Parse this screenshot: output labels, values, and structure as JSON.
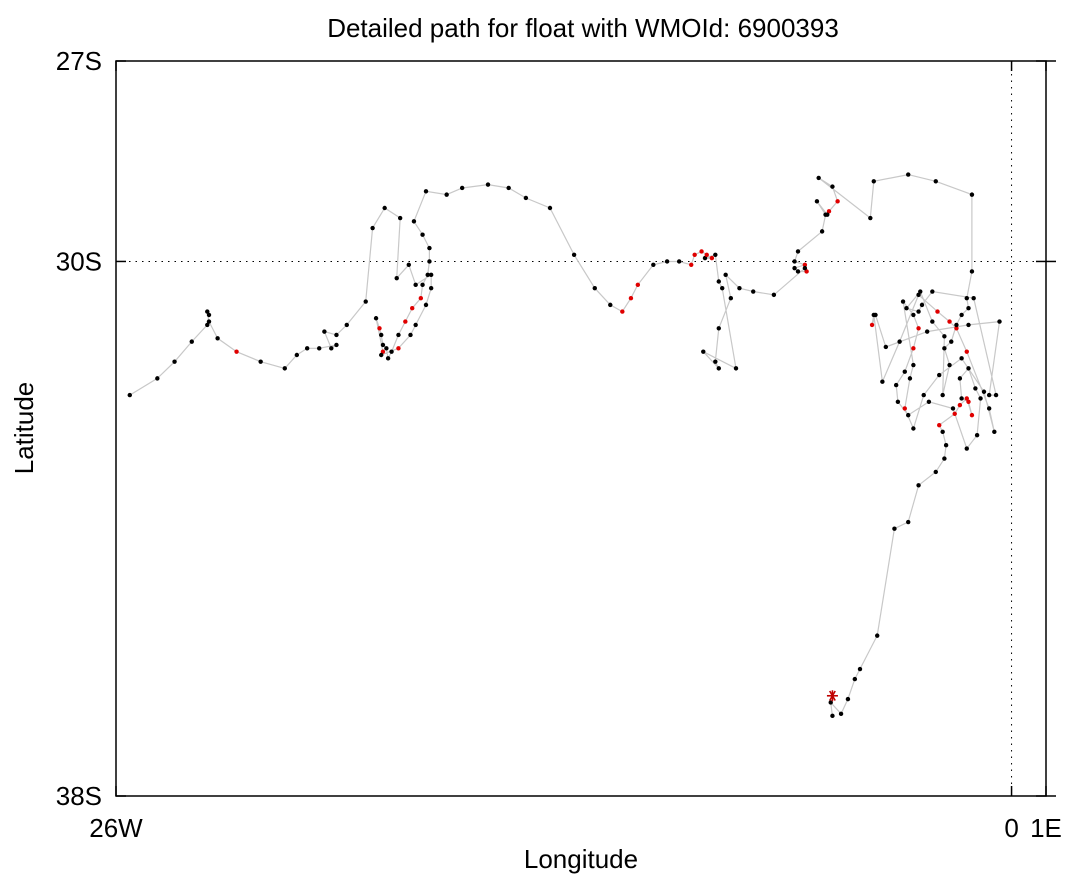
{
  "chart_data": {
    "type": "scatter",
    "title": "Detailed path for float with WMOId: 6900393",
    "xlabel": "Longitude",
    "ylabel": "Latitude",
    "xlim": [
      -26,
      1
    ],
    "ylim": [
      -38,
      -27
    ],
    "x_ticks": [
      {
        "value": -26,
        "label": "26W"
      },
      {
        "value": 0,
        "label": "0"
      },
      {
        "value": 1,
        "label": "1E"
      }
    ],
    "y_ticks": [
      {
        "value": -27,
        "label": "27S"
      },
      {
        "value": -30,
        "label": "30S"
      },
      {
        "value": -38,
        "label": "38S"
      }
    ],
    "reference_lines": {
      "longitude": 0,
      "latitude": -30,
      "style": "dotted"
    },
    "grid": false,
    "colors": {
      "path": "#c8c8c8",
      "position": "#000000",
      "highlight": "#e00000",
      "start_marker": "#c00000"
    },
    "start_marker": {
      "x": -5.2,
      "y": -36.5,
      "symbol": "asterisk"
    },
    "path": [
      {
        "x": -5.2,
        "y": -36.8,
        "h": false
      },
      {
        "x": -5.25,
        "y": -36.6,
        "h": false
      },
      {
        "x": -4.95,
        "y": -36.77,
        "h": false
      },
      {
        "x": -4.75,
        "y": -36.55,
        "h": false
      },
      {
        "x": -4.55,
        "y": -36.25,
        "h": false
      },
      {
        "x": -4.4,
        "y": -36.1,
        "h": false
      },
      {
        "x": -3.9,
        "y": -35.6,
        "h": false
      },
      {
        "x": -3.4,
        "y": -34.0,
        "h": false
      },
      {
        "x": -3.0,
        "y": -33.9,
        "h": false
      },
      {
        "x": -2.7,
        "y": -33.35,
        "h": false
      },
      {
        "x": -2.2,
        "y": -33.15,
        "h": false
      },
      {
        "x": -1.95,
        "y": -32.95,
        "h": false
      },
      {
        "x": -1.9,
        "y": -32.75,
        "h": false
      },
      {
        "x": -2.0,
        "y": -32.55,
        "h": false
      },
      {
        "x": -2.1,
        "y": -32.45,
        "h": true
      },
      {
        "x": -1.65,
        "y": -32.28,
        "h": true
      },
      {
        "x": -1.5,
        "y": -32.15,
        "h": true
      },
      {
        "x": -1.3,
        "y": -32.05,
        "h": true
      },
      {
        "x": -1.15,
        "y": -32.3,
        "h": true
      },
      {
        "x": -1.25,
        "y": -32.1,
        "h": true
      },
      {
        "x": -1.45,
        "y": -32.05,
        "h": false
      },
      {
        "x": -1.5,
        "y": -31.75,
        "h": false
      },
      {
        "x": -1.25,
        "y": -31.6,
        "h": false
      },
      {
        "x": -1.05,
        "y": -31.9,
        "h": false
      },
      {
        "x": -0.9,
        "y": -32.05,
        "h": false
      },
      {
        "x": -1.0,
        "y": -32.6,
        "h": false
      },
      {
        "x": -1.3,
        "y": -32.8,
        "h": false
      },
      {
        "x": -1.7,
        "y": -32.2,
        "h": false
      },
      {
        "x": -2.4,
        "y": -32.1,
        "h": false
      },
      {
        "x": -3.0,
        "y": -32.3,
        "h": false
      },
      {
        "x": -3.3,
        "y": -32.1,
        "h": false
      },
      {
        "x": -3.35,
        "y": -31.85,
        "h": false
      },
      {
        "x": -3.1,
        "y": -31.65,
        "h": false
      },
      {
        "x": -2.85,
        "y": -31.3,
        "h": true
      },
      {
        "x": -2.7,
        "y": -31.0,
        "h": true
      },
      {
        "x": -2.85,
        "y": -30.8,
        "h": false
      },
      {
        "x": -3.15,
        "y": -30.6,
        "h": false
      },
      {
        "x": -2.85,
        "y": -31.55,
        "h": false
      },
      {
        "x": -2.95,
        "y": -31.75,
        "h": false
      },
      {
        "x": -3.1,
        "y": -32.2,
        "h": true
      },
      {
        "x": -2.85,
        "y": -32.5,
        "h": false
      },
      {
        "x": -2.55,
        "y": -32.0,
        "h": false
      },
      {
        "x": -2.1,
        "y": -31.7,
        "h": false
      },
      {
        "x": -1.45,
        "y": -31.45,
        "h": false
      },
      {
        "x": -0.8,
        "y": -31.95,
        "h": false
      },
      {
        "x": -0.5,
        "y": -32.55,
        "h": false
      },
      {
        "x": -0.65,
        "y": -32.2,
        "h": false
      },
      {
        "x": -1.3,
        "y": -31.35,
        "h": true
      },
      {
        "x": -1.6,
        "y": -31.0,
        "h": true
      },
      {
        "x": -1.8,
        "y": -30.9,
        "h": true
      },
      {
        "x": -2.15,
        "y": -30.75,
        "h": true
      },
      {
        "x": -2.7,
        "y": -30.5,
        "h": false
      },
      {
        "x": -3.25,
        "y": -31.2,
        "h": false
      },
      {
        "x": -3.75,
        "y": -31.8,
        "h": false
      },
      {
        "x": -4.0,
        "y": -30.8,
        "h": false
      },
      {
        "x": -4.05,
        "y": -30.95,
        "h": true
      },
      {
        "x": -3.95,
        "y": -30.8,
        "h": false
      },
      {
        "x": -3.65,
        "y": -31.28,
        "h": false
      },
      {
        "x": -2.45,
        "y": -31.05,
        "h": false
      },
      {
        "x": -1.25,
        "y": -30.95,
        "h": false
      },
      {
        "x": -0.35,
        "y": -30.9,
        "h": false
      },
      {
        "x": -0.65,
        "y": -32.0,
        "h": false
      },
      {
        "x": -0.45,
        "y": -32.0,
        "h": false
      },
      {
        "x": -1.1,
        "y": -30.55,
        "h": false
      },
      {
        "x": -2.3,
        "y": -30.45,
        "h": false
      },
      {
        "x": -2.6,
        "y": -30.65,
        "h": false
      },
      {
        "x": -2.7,
        "y": -30.75,
        "h": false
      },
      {
        "x": -3.05,
        "y": -30.7,
        "h": false
      },
      {
        "x": -2.65,
        "y": -30.45,
        "h": false
      },
      {
        "x": -2.3,
        "y": -30.9,
        "h": false
      },
      {
        "x": -1.95,
        "y": -31.12,
        "h": false
      },
      {
        "x": -2.0,
        "y": -32.0,
        "h": false
      },
      {
        "x": -1.8,
        "y": -31.55,
        "h": false
      },
      {
        "x": -1.95,
        "y": -31.3,
        "h": false
      },
      {
        "x": -1.75,
        "y": -31.2,
        "h": false
      },
      {
        "x": -1.6,
        "y": -30.95,
        "h": false
      },
      {
        "x": -1.45,
        "y": -30.8,
        "h": false
      },
      {
        "x": -1.25,
        "y": -30.7,
        "h": false
      },
      {
        "x": -1.3,
        "y": -30.55,
        "h": false
      },
      {
        "x": -1.15,
        "y": -30.15,
        "h": false
      },
      {
        "x": -1.15,
        "y": -29.0,
        "h": false
      },
      {
        "x": -2.2,
        "y": -28.8,
        "h": false
      },
      {
        "x": -3.0,
        "y": -28.7,
        "h": false
      },
      {
        "x": -4.0,
        "y": -28.8,
        "h": false
      },
      {
        "x": -4.1,
        "y": -29.35,
        "h": false
      },
      {
        "x": -5.6,
        "y": -28.75,
        "h": false
      },
      {
        "x": -5.2,
        "y": -28.88,
        "h": false
      },
      {
        "x": -5.05,
        "y": -29.1,
        "h": true
      },
      {
        "x": -5.3,
        "y": -29.25,
        "h": true
      },
      {
        "x": -5.35,
        "y": -29.3,
        "h": false
      },
      {
        "x": -5.65,
        "y": -29.1,
        "h": false
      },
      {
        "x": -5.4,
        "y": -29.3,
        "h": false
      },
      {
        "x": -5.5,
        "y": -29.55,
        "h": false
      },
      {
        "x": -6.2,
        "y": -29.85,
        "h": false
      },
      {
        "x": -6.3,
        "y": -30.0,
        "h": false
      },
      {
        "x": -6.0,
        "y": -30.05,
        "h": true
      },
      {
        "x": -6.3,
        "y": -30.1,
        "h": false
      },
      {
        "x": -6.2,
        "y": -30.15,
        "h": false
      },
      {
        "x": -5.95,
        "y": -30.15,
        "h": true
      },
      {
        "x": -6.0,
        "y": -30.1,
        "h": false
      },
      {
        "x": -6.9,
        "y": -30.5,
        "h": false
      },
      {
        "x": -7.5,
        "y": -30.45,
        "h": false
      },
      {
        "x": -7.9,
        "y": -30.4,
        "h": false
      },
      {
        "x": -8.3,
        "y": -30.2,
        "h": false
      },
      {
        "x": -8.15,
        "y": -30.55,
        "h": false
      },
      {
        "x": -8.5,
        "y": -31.0,
        "h": false
      },
      {
        "x": -8.6,
        "y": -31.5,
        "h": false
      },
      {
        "x": -8.5,
        "y": -31.6,
        "h": false
      },
      {
        "x": -8.95,
        "y": -31.35,
        "h": false
      },
      {
        "x": -8.0,
        "y": -31.6,
        "h": false
      },
      {
        "x": -8.4,
        "y": -30.4,
        "h": false
      },
      {
        "x": -8.5,
        "y": -30.3,
        "h": false
      },
      {
        "x": -8.6,
        "y": -29.9,
        "h": false
      },
      {
        "x": -8.9,
        "y": -29.95,
        "h": false
      },
      {
        "x": -8.7,
        "y": -29.95,
        "h": true
      },
      {
        "x": -8.85,
        "y": -29.9,
        "h": true
      },
      {
        "x": -9.0,
        "y": -29.85,
        "h": true
      },
      {
        "x": -9.2,
        "y": -29.9,
        "h": true
      },
      {
        "x": -9.3,
        "y": -30.05,
        "h": true
      },
      {
        "x": -9.65,
        "y": -30.0,
        "h": false
      },
      {
        "x": -10.0,
        "y": -30.0,
        "h": false
      },
      {
        "x": -10.4,
        "y": -30.05,
        "h": false
      },
      {
        "x": -10.85,
        "y": -30.35,
        "h": true
      },
      {
        "x": -11.05,
        "y": -30.55,
        "h": true
      },
      {
        "x": -11.3,
        "y": -30.75,
        "h": true
      },
      {
        "x": -11.65,
        "y": -30.65,
        "h": false
      },
      {
        "x": -12.1,
        "y": -30.4,
        "h": false
      },
      {
        "x": -12.7,
        "y": -29.9,
        "h": false
      },
      {
        "x": -13.4,
        "y": -29.2,
        "h": false
      },
      {
        "x": -14.1,
        "y": -29.05,
        "h": false
      },
      {
        "x": -14.6,
        "y": -28.9,
        "h": false
      },
      {
        "x": -15.2,
        "y": -28.85,
        "h": false
      },
      {
        "x": -15.95,
        "y": -28.9,
        "h": false
      },
      {
        "x": -16.4,
        "y": -29.0,
        "h": false
      },
      {
        "x": -17.0,
        "y": -28.95,
        "h": false
      },
      {
        "x": -17.35,
        "y": -29.4,
        "h": false
      },
      {
        "x": -17.1,
        "y": -29.6,
        "h": false
      },
      {
        "x": -16.9,
        "y": -29.8,
        "h": false
      },
      {
        "x": -16.9,
        "y": -30.0,
        "h": false
      },
      {
        "x": -16.95,
        "y": -30.2,
        "h": false
      },
      {
        "x": -17.1,
        "y": -30.35,
        "h": false
      },
      {
        "x": -17.15,
        "y": -30.55,
        "h": true
      },
      {
        "x": -17.4,
        "y": -30.7,
        "h": true
      },
      {
        "x": -17.6,
        "y": -30.9,
        "h": true
      },
      {
        "x": -17.8,
        "y": -31.1,
        "h": false
      },
      {
        "x": -18.0,
        "y": -31.35,
        "h": false
      },
      {
        "x": -18.1,
        "y": -31.45,
        "h": false
      },
      {
        "x": -18.15,
        "y": -31.3,
        "h": false
      },
      {
        "x": -18.25,
        "y": -31.25,
        "h": false
      },
      {
        "x": -18.3,
        "y": -31.1,
        "h": false
      },
      {
        "x": -18.35,
        "y": -31.0,
        "h": true
      },
      {
        "x": -18.45,
        "y": -30.85,
        "h": false
      },
      {
        "x": -18.25,
        "y": -31.35,
        "h": true
      },
      {
        "x": -18.3,
        "y": -31.4,
        "h": false
      },
      {
        "x": -17.8,
        "y": -31.3,
        "h": true
      },
      {
        "x": -17.45,
        "y": -31.1,
        "h": false
      },
      {
        "x": -17.3,
        "y": -30.95,
        "h": false
      },
      {
        "x": -17.0,
        "y": -30.65,
        "h": false
      },
      {
        "x": -16.85,
        "y": -30.4,
        "h": false
      },
      {
        "x": -16.85,
        "y": -30.2,
        "h": false
      },
      {
        "x": -17.3,
        "y": -30.35,
        "h": false
      },
      {
        "x": -17.5,
        "y": -30.05,
        "h": false
      },
      {
        "x": -17.85,
        "y": -30.25,
        "h": false
      },
      {
        "x": -17.75,
        "y": -29.35,
        "h": false
      },
      {
        "x": -18.2,
        "y": -29.2,
        "h": false
      },
      {
        "x": -18.55,
        "y": -29.5,
        "h": false
      },
      {
        "x": -18.75,
        "y": -30.6,
        "h": false
      },
      {
        "x": -19.3,
        "y": -30.95,
        "h": false
      },
      {
        "x": -19.6,
        "y": -31.1,
        "h": false
      },
      {
        "x": -19.95,
        "y": -31.05,
        "h": false
      },
      {
        "x": -19.75,
        "y": -31.3,
        "h": false
      },
      {
        "x": -19.6,
        "y": -31.25,
        "h": false
      },
      {
        "x": -20.1,
        "y": -31.3,
        "h": false
      },
      {
        "x": -20.45,
        "y": -31.3,
        "h": false
      },
      {
        "x": -20.75,
        "y": -31.4,
        "h": false
      },
      {
        "x": -21.1,
        "y": -31.6,
        "h": false
      },
      {
        "x": -21.8,
        "y": -31.5,
        "h": false
      },
      {
        "x": -22.5,
        "y": -31.35,
        "h": true
      },
      {
        "x": -23.05,
        "y": -31.15,
        "h": false
      },
      {
        "x": -23.3,
        "y": -30.9,
        "h": false
      },
      {
        "x": -23.35,
        "y": -30.75,
        "h": false
      },
      {
        "x": -23.3,
        "y": -30.8,
        "h": false
      },
      {
        "x": -23.35,
        "y": -30.95,
        "h": false
      },
      {
        "x": -23.8,
        "y": -31.2,
        "h": false
      },
      {
        "x": -24.3,
        "y": -31.5,
        "h": false
      },
      {
        "x": -24.8,
        "y": -31.75,
        "h": false
      },
      {
        "x": -25.6,
        "y": -32.0,
        "h": false
      }
    ]
  }
}
